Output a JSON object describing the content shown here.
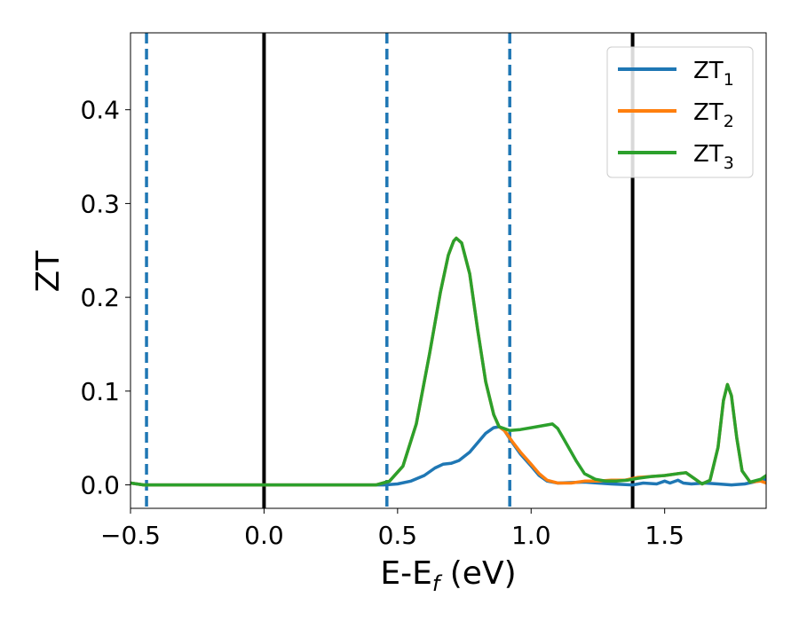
{
  "chart_data": {
    "type": "line",
    "title": "",
    "xlabel_parts": [
      "E-E",
      "f",
      " (eV)"
    ],
    "ylabel": "ZT",
    "xlim": [
      -0.5,
      1.88
    ],
    "ylim": [
      -0.025,
      0.482
    ],
    "x_ticks": [
      -0.5,
      0.0,
      0.5,
      1.0,
      1.5
    ],
    "x_tick_labels": [
      "−0.5",
      "0.0",
      "0.5",
      "1.0",
      "1.5"
    ],
    "y_ticks": [
      0.0,
      0.1,
      0.2,
      0.3,
      0.4
    ],
    "y_tick_labels": [
      "0.0",
      "0.1",
      "0.2",
      "0.3",
      "0.4"
    ],
    "grid": false,
    "legend_position": "top-right",
    "vertical_lines": [
      {
        "x": 0.0,
        "style": "solid",
        "color": "#000000"
      },
      {
        "x": 1.38,
        "style": "solid",
        "color": "#000000"
      },
      {
        "x": -0.44,
        "style": "dashed",
        "color": "#1f77b4"
      },
      {
        "x": 0.46,
        "style": "dashed",
        "color": "#1f77b4"
      },
      {
        "x": 0.92,
        "style": "dashed",
        "color": "#1f77b4"
      }
    ],
    "series": [
      {
        "name": "ZT",
        "subscript": "1",
        "color": "#1f77b4",
        "points": [
          [
            -0.5,
            0.002
          ],
          [
            -0.45,
            0.0
          ],
          [
            0.45,
            0.0
          ],
          [
            0.5,
            0.001
          ],
          [
            0.55,
            0.004
          ],
          [
            0.6,
            0.01
          ],
          [
            0.64,
            0.018
          ],
          [
            0.67,
            0.022
          ],
          [
            0.7,
            0.023
          ],
          [
            0.73,
            0.026
          ],
          [
            0.77,
            0.035
          ],
          [
            0.8,
            0.045
          ],
          [
            0.83,
            0.055
          ],
          [
            0.86,
            0.061
          ],
          [
            0.88,
            0.062
          ],
          [
            0.9,
            0.058
          ],
          [
            0.93,
            0.045
          ],
          [
            0.96,
            0.033
          ],
          [
            1.0,
            0.02
          ],
          [
            1.03,
            0.01
          ],
          [
            1.06,
            0.004
          ],
          [
            1.1,
            0.002
          ],
          [
            1.2,
            0.003
          ],
          [
            1.25,
            0.002
          ],
          [
            1.3,
            0.001
          ],
          [
            1.38,
            0.0
          ],
          [
            1.42,
            0.002
          ],
          [
            1.47,
            0.001
          ],
          [
            1.5,
            0.004
          ],
          [
            1.52,
            0.002
          ],
          [
            1.55,
            0.005
          ],
          [
            1.57,
            0.002
          ],
          [
            1.6,
            0.001
          ],
          [
            1.65,
            0.002
          ],
          [
            1.7,
            0.001
          ],
          [
            1.75,
            0.0
          ],
          [
            1.8,
            0.001
          ],
          [
            1.85,
            0.004
          ],
          [
            1.88,
            0.006
          ]
        ]
      },
      {
        "name": "ZT",
        "subscript": "2",
        "color": "#ff7f0e",
        "points": [
          [
            -0.5,
            0.002
          ],
          [
            -0.45,
            0.0
          ],
          [
            0.42,
            0.0
          ],
          [
            0.47,
            0.004
          ],
          [
            0.52,
            0.02
          ],
          [
            0.57,
            0.065
          ],
          [
            0.62,
            0.14
          ],
          [
            0.66,
            0.205
          ],
          [
            0.69,
            0.245
          ],
          [
            0.71,
            0.26
          ],
          [
            0.72,
            0.263
          ],
          [
            0.74,
            0.258
          ],
          [
            0.77,
            0.225
          ],
          [
            0.8,
            0.165
          ],
          [
            0.83,
            0.11
          ],
          [
            0.86,
            0.075
          ],
          [
            0.88,
            0.062
          ],
          [
            0.9,
            0.058
          ],
          [
            0.93,
            0.046
          ],
          [
            0.96,
            0.035
          ],
          [
            1.0,
            0.022
          ],
          [
            1.03,
            0.012
          ],
          [
            1.06,
            0.005
          ],
          [
            1.1,
            0.002
          ],
          [
            1.15,
            0.002
          ],
          [
            1.2,
            0.004
          ],
          [
            1.25,
            0.004
          ],
          [
            1.3,
            0.005
          ],
          [
            1.35,
            0.005
          ],
          [
            1.4,
            0.008
          ],
          [
            1.45,
            0.009
          ],
          [
            1.5,
            0.01
          ],
          [
            1.55,
            0.012
          ],
          [
            1.58,
            0.013
          ],
          [
            1.61,
            0.007
          ],
          [
            1.64,
            0.001
          ],
          [
            1.67,
            0.005
          ],
          [
            1.7,
            0.04
          ],
          [
            1.72,
            0.09
          ],
          [
            1.735,
            0.107
          ],
          [
            1.75,
            0.095
          ],
          [
            1.77,
            0.05
          ],
          [
            1.79,
            0.015
          ],
          [
            1.82,
            0.003
          ],
          [
            1.86,
            0.004
          ],
          [
            1.88,
            0.002
          ]
        ]
      },
      {
        "name": "ZT",
        "subscript": "3",
        "color": "#2ca02c",
        "points": [
          [
            -0.5,
            0.002
          ],
          [
            -0.45,
            0.0
          ],
          [
            0.42,
            0.0
          ],
          [
            0.47,
            0.004
          ],
          [
            0.52,
            0.02
          ],
          [
            0.57,
            0.065
          ],
          [
            0.62,
            0.14
          ],
          [
            0.66,
            0.205
          ],
          [
            0.69,
            0.245
          ],
          [
            0.71,
            0.26
          ],
          [
            0.72,
            0.263
          ],
          [
            0.74,
            0.258
          ],
          [
            0.77,
            0.225
          ],
          [
            0.8,
            0.165
          ],
          [
            0.83,
            0.11
          ],
          [
            0.86,
            0.075
          ],
          [
            0.88,
            0.062
          ],
          [
            0.92,
            0.058
          ],
          [
            0.96,
            0.059
          ],
          [
            1.0,
            0.061
          ],
          [
            1.04,
            0.063
          ],
          [
            1.08,
            0.065
          ],
          [
            1.1,
            0.06
          ],
          [
            1.13,
            0.045
          ],
          [
            1.17,
            0.025
          ],
          [
            1.2,
            0.012
          ],
          [
            1.24,
            0.006
          ],
          [
            1.28,
            0.004
          ],
          [
            1.32,
            0.004
          ],
          [
            1.36,
            0.005
          ],
          [
            1.4,
            0.007
          ],
          [
            1.45,
            0.009
          ],
          [
            1.5,
            0.01
          ],
          [
            1.55,
            0.012
          ],
          [
            1.58,
            0.013
          ],
          [
            1.61,
            0.007
          ],
          [
            1.64,
            0.001
          ],
          [
            1.67,
            0.005
          ],
          [
            1.7,
            0.04
          ],
          [
            1.72,
            0.09
          ],
          [
            1.735,
            0.107
          ],
          [
            1.75,
            0.095
          ],
          [
            1.77,
            0.05
          ],
          [
            1.79,
            0.015
          ],
          [
            1.82,
            0.003
          ],
          [
            1.86,
            0.006
          ],
          [
            1.88,
            0.01
          ]
        ]
      }
    ]
  }
}
